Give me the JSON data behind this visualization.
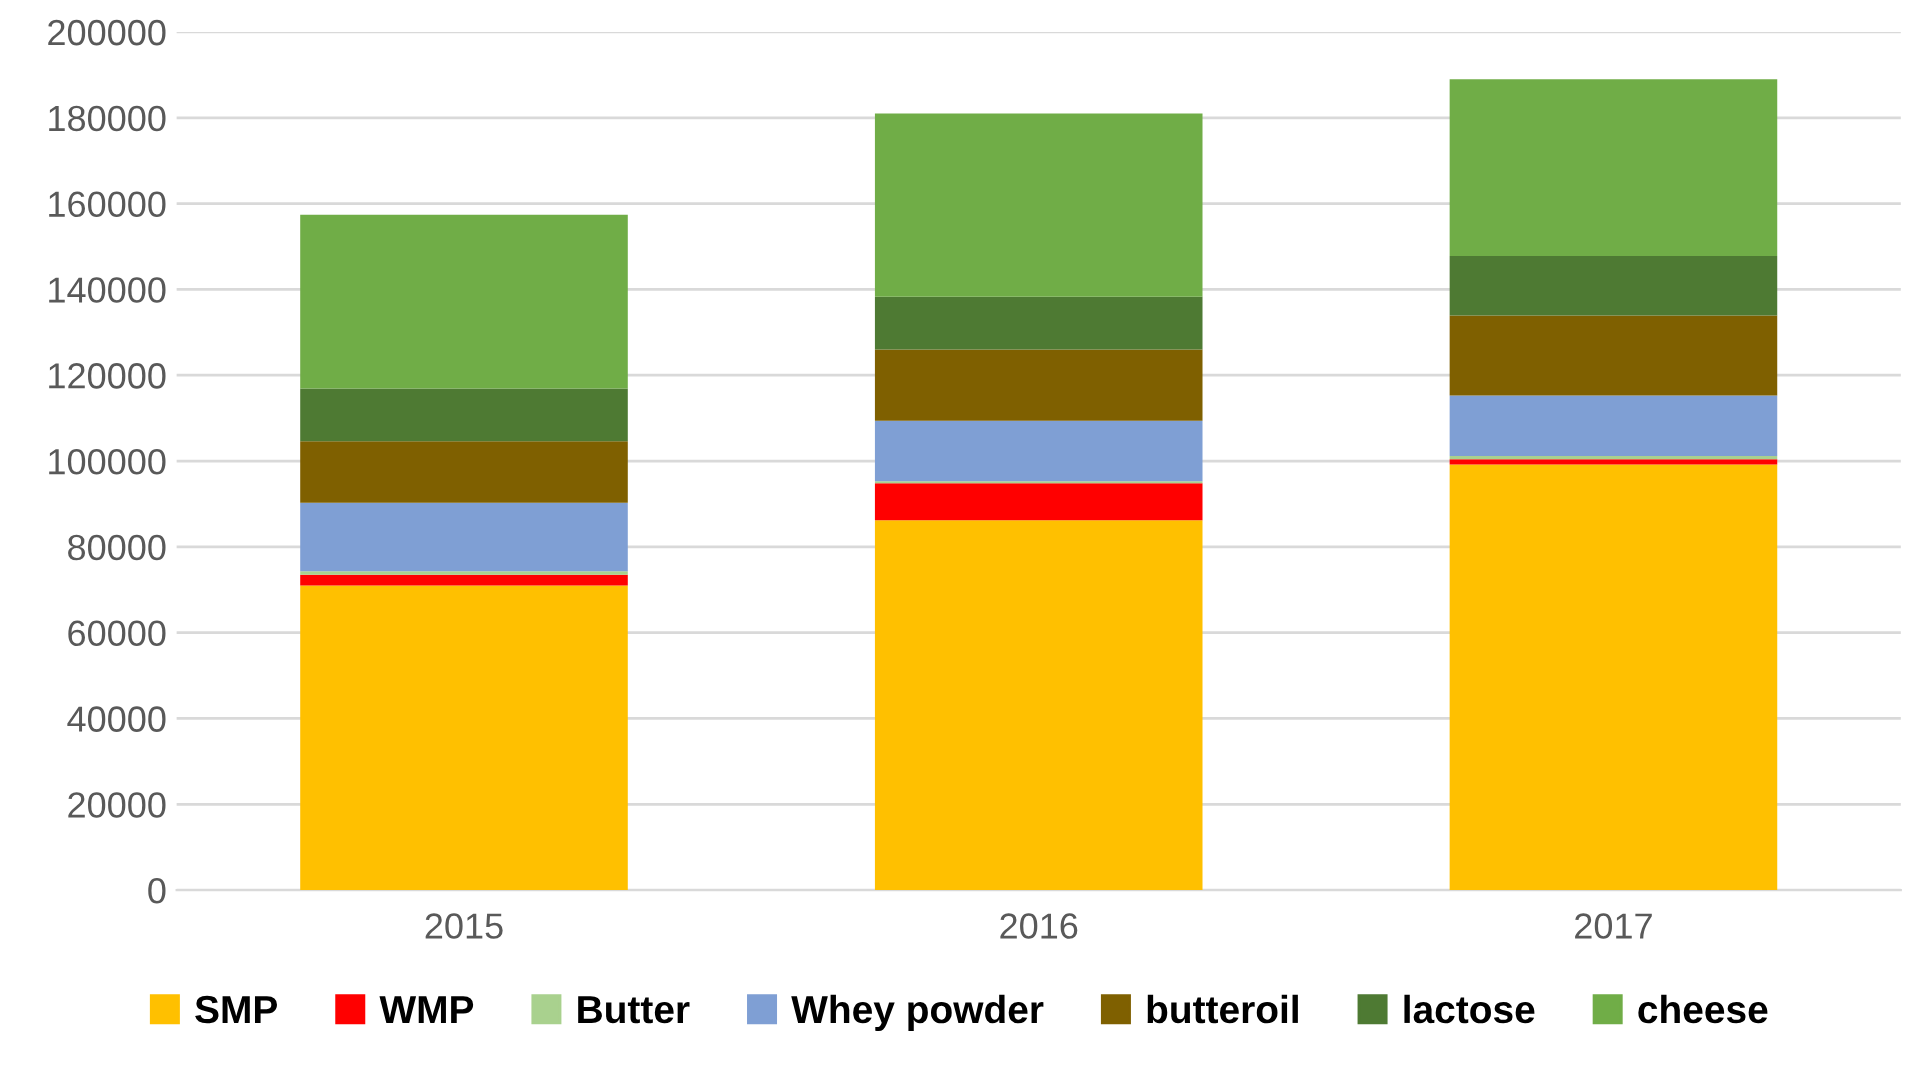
{
  "chart_data": {
    "type": "bar",
    "stacked": true,
    "categories": [
      "2015",
      "2016",
      "2017"
    ],
    "series": [
      {
        "name": "SMP",
        "color": "#ffc000",
        "values": [
          71000,
          86200,
          99200
        ]
      },
      {
        "name": "WMP",
        "color": "#ff0000",
        "values": [
          2500,
          8600,
          1200
        ]
      },
      {
        "name": "Butter",
        "color": "#a9d18e",
        "values": [
          800,
          500,
          800
        ]
      },
      {
        "name": "Whey powder",
        "color": "#7f9fd4",
        "values": [
          16000,
          14100,
          14100
        ]
      },
      {
        "name": "butteroil",
        "color": "#7f6000",
        "values": [
          14300,
          16600,
          18600
        ]
      },
      {
        "name": "lactose",
        "color": "#4e7a33",
        "values": [
          12300,
          12300,
          13900
        ]
      },
      {
        "name": "cheese",
        "color": "#70ad47",
        "values": [
          40500,
          42700,
          41200
        ]
      }
    ],
    "ylim": [
      0,
      200000
    ],
    "yticks": [
      0,
      20000,
      40000,
      60000,
      80000,
      100000,
      120000,
      140000,
      160000,
      180000,
      200000
    ],
    "grid": "y",
    "legend": "bottom"
  }
}
